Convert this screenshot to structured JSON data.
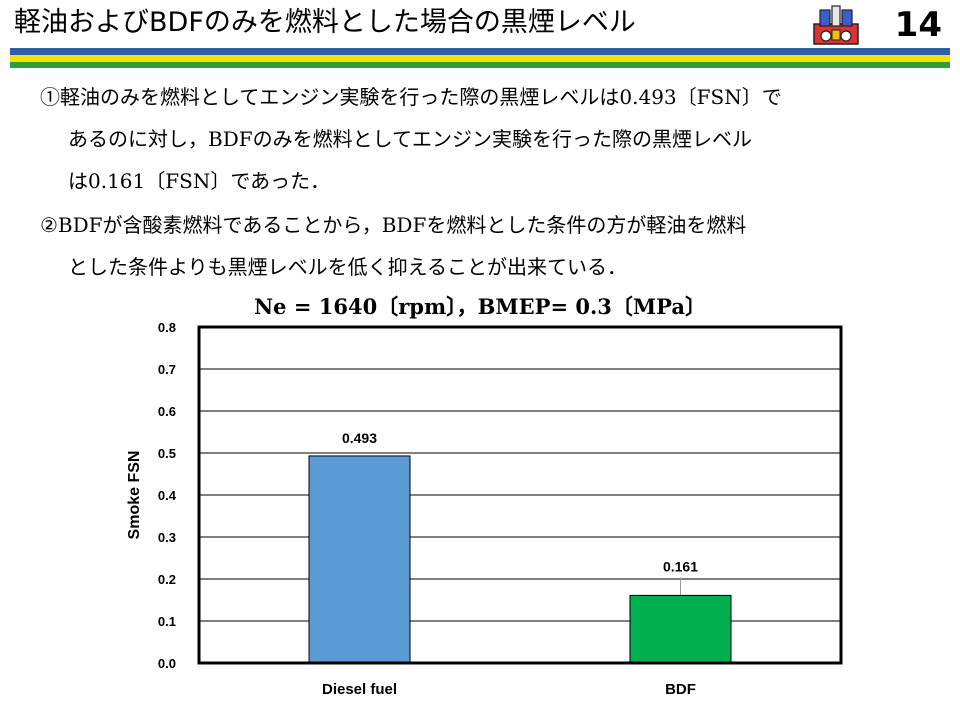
{
  "slide": {
    "title": "軽油およびBDFのみを燃料とした場合の黒煙レベル",
    "number": "14"
  },
  "colors": {
    "stripe_blue": "#2e5fa8",
    "stripe_yellow": "#f2e200",
    "stripe_green": "#2e9e3a",
    "bar_diesel": "#5b9bd5",
    "bar_bdf": "#00b050"
  },
  "bullets": [
    "①軽油のみを燃料としてエンジン実験を行った際の黒煙レベルは0.493〔FSN〕で",
    "あるのに対し，BDFのみを燃料としてエンジン実験を行った際の黒煙レベル",
    "は0.161〔FSN〕であった．",
    "②BDFが含酸素燃料であることから，BDFを燃料とした条件の方が軽油を燃料",
    "とした条件よりも黒煙レベルを低く抑えることが出来ている．"
  ],
  "chart_data": {
    "type": "bar",
    "title": "Ne = 1640〔rpm〕，BMEP= 0.3〔MPa〕",
    "categories": [
      "Diesel fuel",
      "BDF"
    ],
    "values": [
      0.493,
      0.161
    ],
    "data_labels": [
      "0.493",
      "0.161"
    ],
    "bar_colors": [
      "#5b9bd5",
      "#00b050"
    ],
    "xlabel": "",
    "ylabel": "Smoke FSN",
    "ylim": [
      0,
      0.8
    ],
    "yticks": [
      0.0,
      0.1,
      0.2,
      0.3,
      0.4,
      0.5,
      0.6,
      0.7,
      0.8
    ],
    "ytick_labels": [
      "0.0",
      "0.1",
      "0.2",
      "0.3",
      "0.4",
      "0.5",
      "0.6",
      "0.7",
      "0.8"
    ],
    "grid": true,
    "legend": "none"
  }
}
